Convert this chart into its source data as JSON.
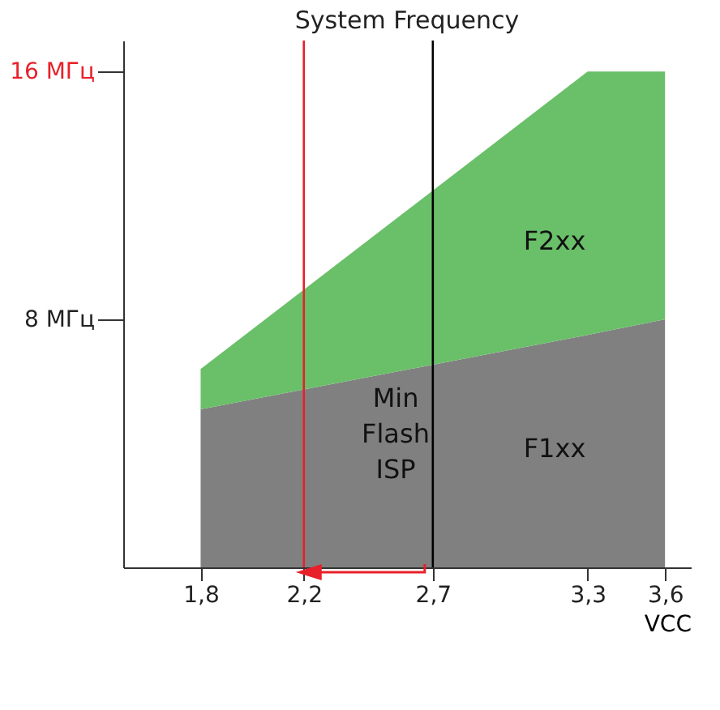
{
  "chart_data": {
    "type": "area",
    "title": "System Frequency",
    "xlabel": "VCC",
    "stacked": true,
    "x": [
      1.8,
      3.3,
      3.6
    ],
    "series": [
      {
        "color": "#808080",
        "values": [
          5.1,
          7.5,
          8.0
        ]
      },
      {
        "color": "#6abf69",
        "values": [
          1.3,
          8.5,
          8.0
        ]
      }
    ],
    "xlim": [
      1.5,
      3.7
    ],
    "ylim": [
      0,
      17
    ],
    "xticks": [
      {
        "value": 1.8,
        "label": "1,8"
      },
      {
        "value": 2.2,
        "label": "2,2"
      },
      {
        "value": 2.7,
        "label": "2,7"
      },
      {
        "value": 3.3,
        "label": "3,3"
      },
      {
        "value": 3.6,
        "label": "3,6"
      }
    ],
    "yticks": [
      {
        "value": 8,
        "label": "8 МГц"
      },
      {
        "value": 16,
        "label": "16 МГц"
      }
    ],
    "ref_lines": [
      {
        "axis": "x",
        "value": 2.2,
        "color": "#e8202a"
      },
      {
        "axis": "x",
        "value": 2.7,
        "color": "#000000"
      }
    ],
    "annotations": [
      "F2xx",
      "F1xx",
      "Min\nFlash\nISP"
    ],
    "grid": false,
    "legend": false
  }
}
